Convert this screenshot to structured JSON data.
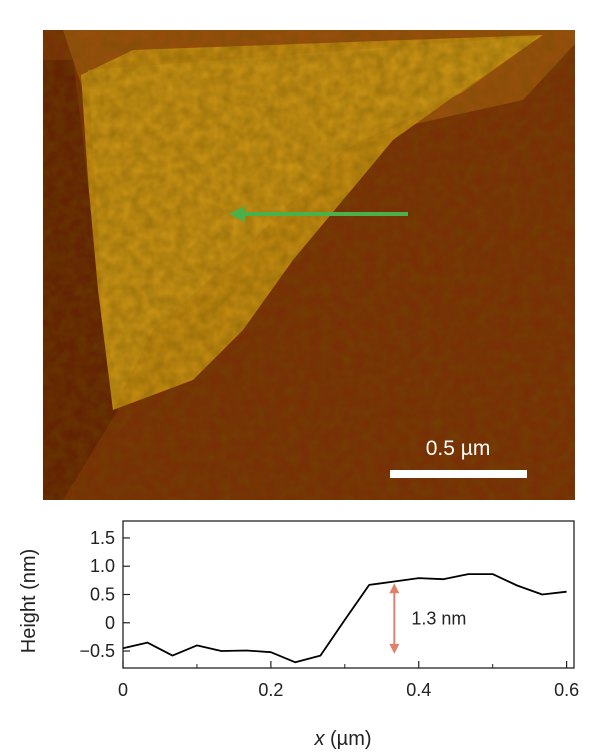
{
  "image": {
    "scalebar_label": "0.5 µm",
    "colors": {
      "substrate": "#7a2a06",
      "flake": "#c98e12",
      "arrow": "#4ab04a",
      "scalebar": "#ffffff"
    }
  },
  "chart_data": {
    "type": "line",
    "xlabel_var": "x",
    "xlabel_unit": " (µm)",
    "ylabel": "Height (nm)",
    "xlim": [
      0,
      0.61
    ],
    "ylim": [
      -0.8,
      1.8
    ],
    "xticks": [
      0,
      0.2,
      0.4,
      0.6
    ],
    "xtick_labels": [
      "0",
      "0.2",
      "0.4",
      "0.6"
    ],
    "yticks": [
      1.5,
      1.0,
      0.5,
      0,
      -0.5
    ],
    "ytick_labels": [
      "1.5",
      "1.0",
      "0.5",
      "0",
      "−0.5"
    ],
    "grid": false,
    "series": [
      {
        "color": "#000000",
        "x": [
          0,
          0.033,
          0.067,
          0.1,
          0.133,
          0.167,
          0.2,
          0.233,
          0.267,
          0.3,
          0.333,
          0.367,
          0.4,
          0.433,
          0.467,
          0.5,
          0.533,
          0.567,
          0.6
        ],
        "y": [
          -0.45,
          -0.35,
          -0.58,
          -0.4,
          -0.5,
          -0.49,
          -0.52,
          -0.7,
          -0.58,
          0.05,
          0.67,
          0.73,
          0.79,
          0.77,
          0.86,
          0.86,
          0.66,
          0.5,
          0.55
        ]
      }
    ],
    "annotation": {
      "text": "1.3 nm",
      "x": 0.367,
      "y_top": 0.7,
      "y_bottom": -0.55,
      "color": "#e0826a"
    }
  }
}
